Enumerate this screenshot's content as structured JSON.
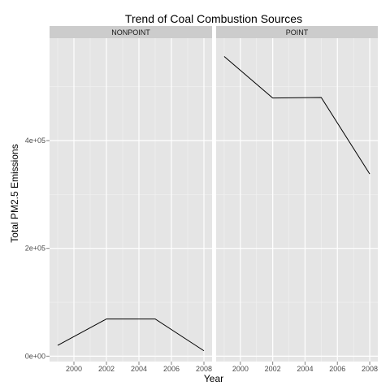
{
  "chart_data": {
    "type": "line",
    "title": "Trend of Coal Combustion Sources",
    "xlabel": "Year",
    "ylabel": "Total PM2.5 Emissions",
    "x_ticks": [
      2000,
      2002,
      2004,
      2006,
      2008
    ],
    "y_ticks": [
      "0e+00",
      "2e+05",
      "4e+05"
    ],
    "y_tick_values": [
      0,
      200000,
      400000
    ],
    "xlim": [
      1998.5,
      2008.5
    ],
    "ylim": [
      -10000,
      590000
    ],
    "grid": true,
    "line_color": "#000000",
    "panel_background": "#e5e5e5",
    "strip_background": "#cccccc",
    "panels": [
      {
        "label": "NONPOINT",
        "x": [
          1999,
          2002,
          2005,
          2008
        ],
        "y": [
          20000,
          69000,
          69000,
          10000
        ]
      },
      {
        "label": "POINT",
        "x": [
          1999,
          2002,
          2005,
          2008
        ],
        "y": [
          556000,
          479000,
          480000,
          338000
        ]
      }
    ]
  }
}
